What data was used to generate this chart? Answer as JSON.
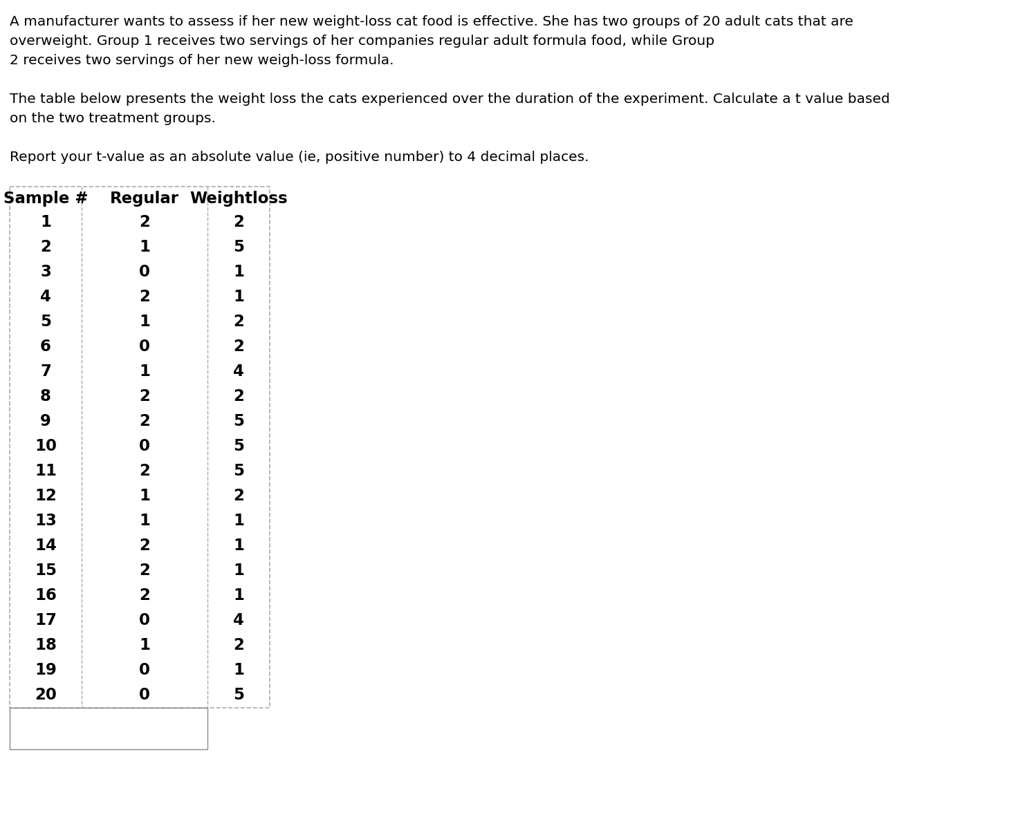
{
  "paragraph1_line1": "A manufacturer wants to assess if her new weight-loss cat food is effective. She has two groups of 20 adult cats that are",
  "paragraph1_line2": "overweight. Group 1 receives two servings of her companies regular adult formula food, while Group",
  "paragraph1_line3": "2 receives two servings of her new weigh-loss formula.",
  "paragraph2_line1": "The table below presents the weight loss the cats experienced over the duration of the experiment. Calculate a t value based",
  "paragraph2_line2": "on the two treatment groups.",
  "paragraph3": "Report your t-value as an absolute value (ie, positive number) to 4 decimal places.",
  "col_headers": [
    "Sample #",
    "Regular",
    "Weightloss"
  ],
  "sample_nums": [
    1,
    2,
    3,
    4,
    5,
    6,
    7,
    8,
    9,
    10,
    11,
    12,
    13,
    14,
    15,
    16,
    17,
    18,
    19,
    20
  ],
  "regular": [
    2,
    1,
    0,
    2,
    1,
    0,
    1,
    2,
    2,
    0,
    2,
    1,
    1,
    2,
    2,
    2,
    0,
    1,
    0,
    0
  ],
  "weightloss": [
    2,
    5,
    1,
    1,
    2,
    2,
    4,
    2,
    5,
    5,
    5,
    2,
    1,
    1,
    1,
    1,
    4,
    2,
    1,
    5
  ],
  "text_color": "#000000",
  "background_color": "#ffffff",
  "font_size_body": 14.5,
  "font_size_table": 16.5,
  "dash_color": "#aaaaaa",
  "solid_color": "#888888"
}
